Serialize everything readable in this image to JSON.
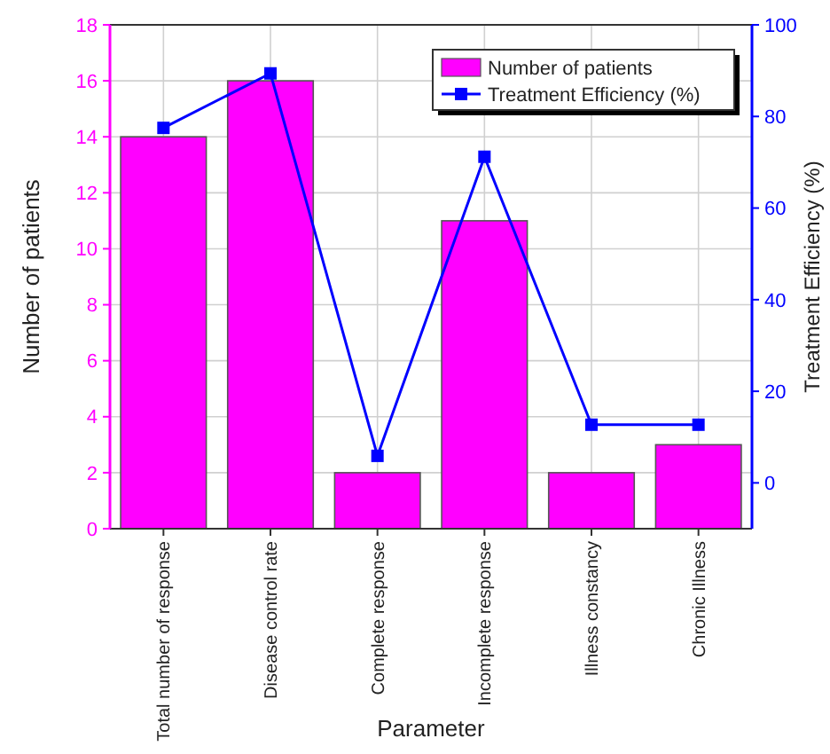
{
  "chart_data": {
    "type": "bar",
    "xlabel": "Parameter",
    "ylabel": "Number of patients",
    "y2label": "Treatment Efficiency (%)",
    "categories": [
      "Total number of response",
      "Disease control rate",
      "Complete response",
      "Incomplete response",
      "Illness constancy",
      "Chronic Illness"
    ],
    "series": [
      {
        "name": "Number of patients",
        "color": "#ff00ff",
        "values": [
          14,
          16,
          2,
          11,
          2,
          3
        ]
      },
      {
        "name": "Treatment Efficiency (%)",
        "type": "line",
        "axis": "y2",
        "color": "#0000ff",
        "values": [
          77.5,
          89.4,
          5.9,
          71.2,
          12.7,
          12.7
        ]
      }
    ],
    "ylim": [
      0,
      18
    ],
    "yticks": [
      0,
      2,
      4,
      6,
      8,
      10,
      12,
      14,
      16,
      18
    ],
    "y2lim": [
      -10,
      100
    ],
    "y2ticks": [
      0,
      20,
      40,
      60,
      80,
      100
    ],
    "grid": true,
    "legend": "top right",
    "marker": "square",
    "line_style": "solid"
  }
}
